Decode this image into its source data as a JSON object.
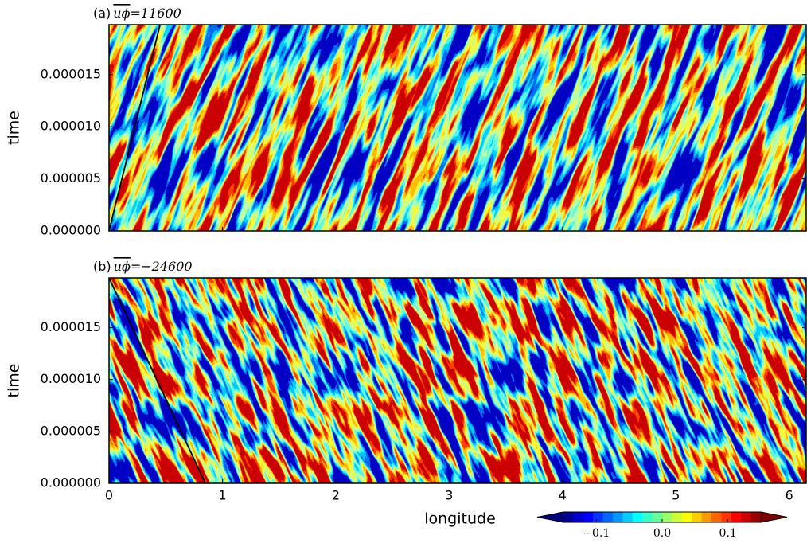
{
  "chart_data": [
    {
      "type": "heatmap",
      "title": [
        "(a)",
        "uϕ",
        "=11600"
      ],
      "ylabel": "time",
      "xlim": [
        0,
        6.15
      ],
      "ylim": [
        0,
        1.98e-05
      ],
      "yticks": [
        {
          "value": 0,
          "label": "0.000000"
        },
        {
          "value": 5e-06,
          "label": "0.000005"
        },
        {
          "value": 1e-05,
          "label": "0.000010"
        },
        {
          "value": 1.5e-05,
          "label": "0.000015"
        }
      ],
      "line": {
        "x": [
          0,
          0.45
        ],
        "y": [
          0,
          1.98e-05
        ]
      }
    },
    {
      "type": "heatmap",
      "title": [
        "(b)",
        "uϕ",
        "=−24600"
      ],
      "ylabel": "time",
      "xlabel": "longitude",
      "xlim": [
        0,
        6.15
      ],
      "ylim": [
        0,
        1.98e-05
      ],
      "xticks": [
        0,
        1,
        2,
        3,
        4,
        5,
        6
      ],
      "yticks": [
        {
          "value": 0,
          "label": "0.000000"
        },
        {
          "value": 5e-06,
          "label": "0.000005"
        },
        {
          "value": 1e-05,
          "label": "0.000010"
        },
        {
          "value": 1.5e-05,
          "label": "0.000015"
        }
      ],
      "line": {
        "x": [
          0,
          0.85
        ],
        "y": [
          1.98e-05,
          0
        ]
      }
    },
    {
      "type": "colorbar",
      "lim": [
        -0.15,
        0.15
      ],
      "extend": "both",
      "ticks": [
        {
          "value": -0.1,
          "label": "−0.1"
        },
        {
          "value": 0,
          "label": "0.0"
        },
        {
          "value": 0.1,
          "label": "0.1"
        }
      ]
    }
  ]
}
